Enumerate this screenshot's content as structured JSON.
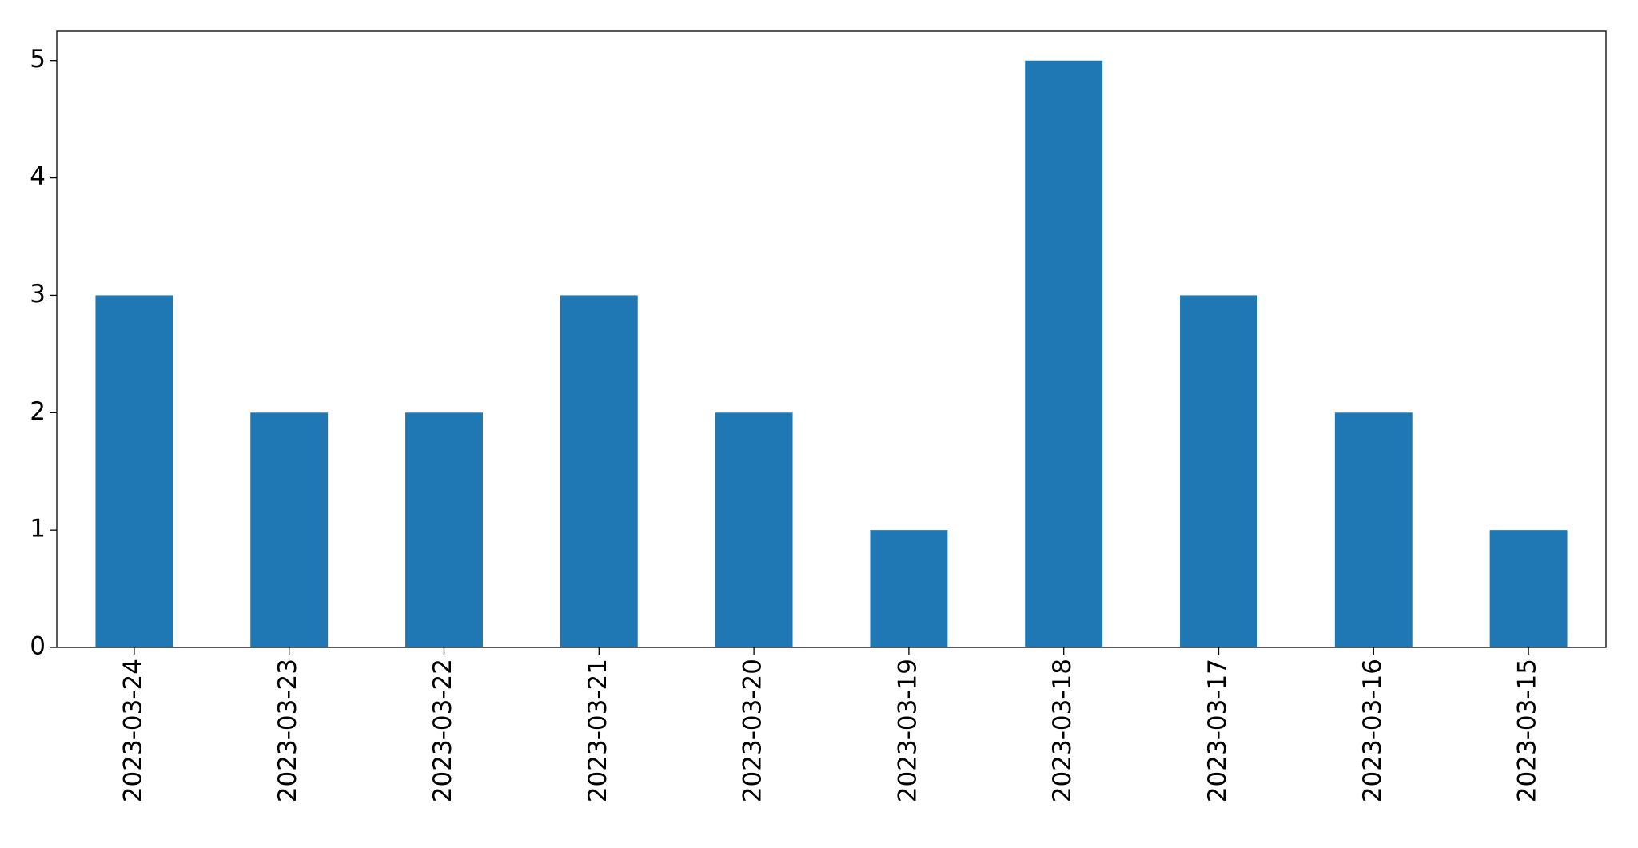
{
  "chart_data": {
    "type": "bar",
    "categories": [
      "2023-03-24",
      "2023-03-23",
      "2023-03-22",
      "2023-03-21",
      "2023-03-20",
      "2023-03-19",
      "2023-03-18",
      "2023-03-17",
      "2023-03-16",
      "2023-03-15"
    ],
    "values": [
      3,
      2,
      2,
      3,
      2,
      1,
      5,
      3,
      2,
      1
    ],
    "color": "#1f77b4",
    "ylim": [
      0,
      5.25
    ],
    "yticks": [
      0,
      1,
      2,
      3,
      4,
      5
    ],
    "grid": false
  }
}
